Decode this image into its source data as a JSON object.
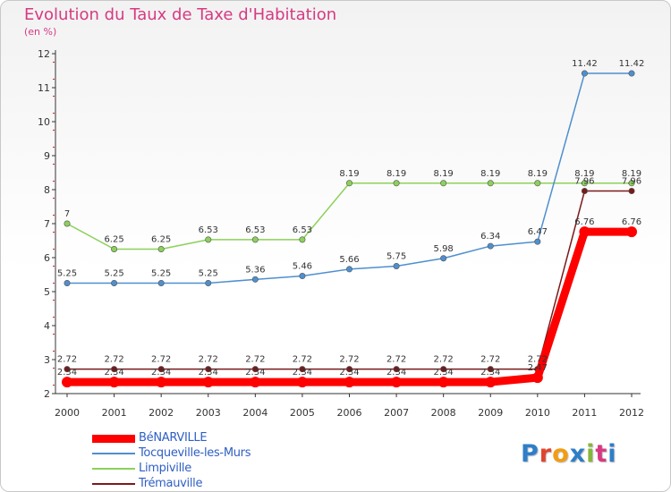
{
  "title": "Evolution du Taux de Taxe d'Habitation",
  "subtitle": "(en %)",
  "brand": {
    "letters": [
      "P",
      "r",
      "o",
      "x",
      "i",
      "t",
      "i"
    ],
    "colors": [
      "#2e7ec8",
      "#e0452c",
      "#f39c12",
      "#2e7ec8",
      "#86b73d",
      "#d63a82",
      "#2e7ec8"
    ]
  },
  "chart_data": {
    "type": "line",
    "x": [
      2000,
      2001,
      2002,
      2003,
      2004,
      2005,
      2006,
      2007,
      2008,
      2009,
      2010,
      2011,
      2012
    ],
    "ylim": [
      2,
      12
    ],
    "yticks": [
      2,
      3,
      4,
      5,
      6,
      7,
      8,
      9,
      10,
      11,
      12
    ],
    "grid": false,
    "legend_position": "bottom-left",
    "series": [
      {
        "name": "BéNARVILLE",
        "color": "#ff0000",
        "values": [
          2.34,
          2.34,
          2.34,
          2.34,
          2.34,
          2.34,
          2.34,
          2.34,
          2.34,
          2.34,
          2.47,
          6.76,
          6.76
        ],
        "labels": [
          "2.34",
          "2.34",
          "2.34",
          "2.34",
          "2.34",
          "2.34",
          "2.34",
          "2.34",
          "2.34",
          "2.34",
          "2.47",
          "6.76",
          "6.76"
        ]
      },
      {
        "name": "Tocqueville-les-Murs",
        "color": "#4f8fcf",
        "values": [
          5.25,
          5.25,
          5.25,
          5.25,
          5.36,
          5.46,
          5.66,
          5.75,
          5.98,
          6.34,
          6.47,
          11.42,
          11.42
        ],
        "labels": [
          "5.25",
          "5.25",
          "5.25",
          "5.25",
          "5.36",
          "5.46",
          "5.66",
          "5.75",
          "5.98",
          "6.34",
          "6.47",
          "11.42",
          "11.42"
        ]
      },
      {
        "name": "Limpiville",
        "color": "#8cd15a",
        "values": [
          7,
          6.25,
          6.25,
          6.53,
          6.53,
          6.53,
          8.19,
          8.19,
          8.19,
          8.19,
          8.19,
          8.19,
          8.19
        ],
        "labels": [
          "7",
          "6.25",
          "6.25",
          "6.53",
          "6.53",
          "6.53",
          "8.19",
          "8.19",
          "8.19",
          "8.19",
          "8.19",
          "8.19",
          "8.19"
        ]
      },
      {
        "name": "Trémauville",
        "color": "#7a1a1a",
        "values": [
          2.72,
          2.72,
          2.72,
          2.72,
          2.72,
          2.72,
          2.72,
          2.72,
          2.72,
          2.72,
          2.72,
          7.96,
          7.96
        ],
        "labels": [
          "2.72",
          "2.72",
          "2.72",
          "2.72",
          "2.72",
          "2.72",
          "2.72",
          "2.72",
          "2.72",
          "2.72",
          "2.72",
          "7.96",
          "7.96"
        ]
      }
    ]
  }
}
